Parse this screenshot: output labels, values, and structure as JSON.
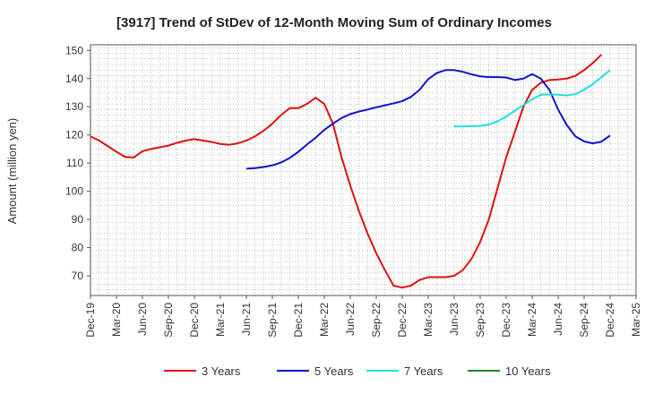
{
  "chart_data": {
    "type": "line",
    "title": "[3917]  Trend of StDev of 12-Month Moving Sum of Ordinary Incomes",
    "xlabel": "",
    "ylabel": "Amount (million yen)",
    "ylim": [
      63,
      152
    ],
    "yticks": [
      70,
      80,
      90,
      100,
      110,
      120,
      130,
      140,
      150
    ],
    "x_categories": [
      "Dec-19",
      "Mar-20",
      "Jun-20",
      "Sep-20",
      "Dec-20",
      "Mar-21",
      "Jun-21",
      "Sep-21",
      "Dec-21",
      "Mar-22",
      "Jun-22",
      "Sep-22",
      "Dec-22",
      "Mar-23",
      "Jun-23",
      "Sep-23",
      "Dec-23",
      "Mar-24",
      "Jun-24",
      "Sep-24",
      "Dec-24",
      "Mar-25"
    ],
    "grid": true,
    "legend_position": "bottom",
    "series": [
      {
        "name": "3 Years",
        "color": "#dd1111",
        "start_index": 0,
        "values": [
          119.5,
          118.0,
          116.0,
          114.0,
          112.2,
          112.0,
          114.2,
          115.0,
          115.6,
          116.2,
          117.2,
          118.0,
          118.5,
          118.0,
          117.5,
          116.8,
          116.5,
          117.0,
          118.0,
          119.5,
          121.5,
          124.0,
          127.0,
          129.5,
          129.5,
          131.0,
          133.2,
          131.0,
          124.0,
          112.0,
          102.0,
          93.0,
          85.0,
          78.0,
          72.0,
          66.5,
          65.8,
          66.5,
          68.5,
          69.5,
          69.5,
          69.5,
          70.0,
          72.0,
          76.0,
          82.0,
          90.0,
          101.0,
          112.0,
          121.0,
          130.0,
          136.0,
          138.5,
          139.5,
          139.7,
          140.0,
          141.0,
          143.0,
          145.5,
          148.5
        ]
      },
      {
        "name": "5 Years",
        "color": "#1111cc",
        "start_index": 18,
        "values": [
          108.0,
          108.2,
          108.6,
          109.2,
          110.2,
          111.8,
          114.0,
          116.6,
          119.0,
          121.8,
          124.0,
          126.0,
          127.4,
          128.3,
          129.0,
          129.8,
          130.5,
          131.2,
          132.0,
          133.5,
          136.0,
          139.8,
          142.0,
          143.0,
          143.0,
          142.4,
          141.5,
          140.8,
          140.5,
          140.5,
          140.4,
          139.5,
          140.0,
          141.6,
          140.0,
          136.0,
          129.0,
          123.5,
          119.5,
          117.7,
          117.0,
          117.6,
          119.8
        ]
      },
      {
        "name": "7 Years",
        "color": "#22dddd",
        "start_index": 42,
        "values": [
          123.0,
          123.0,
          123.1,
          123.2,
          123.7,
          124.8,
          126.5,
          128.6,
          130.6,
          132.6,
          134.3,
          134.4,
          134.3,
          134.0,
          134.5,
          136.0,
          138.0,
          140.5,
          143.0
        ]
      },
      {
        "name": "10 Years",
        "color": "#228822",
        "start_index": 0,
        "values": []
      }
    ]
  }
}
